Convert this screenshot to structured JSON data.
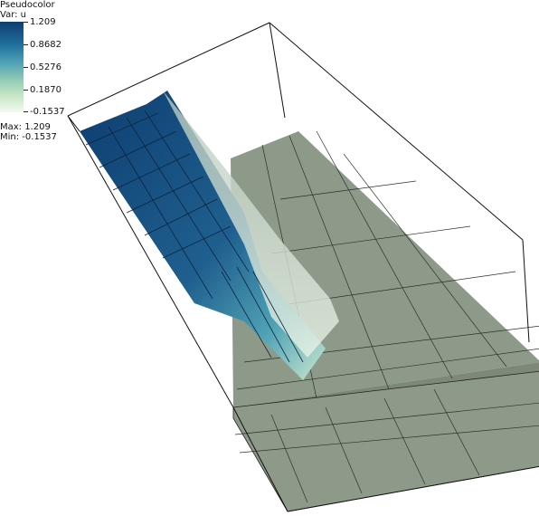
{
  "legend": {
    "title": "Pseudocolor",
    "var": "Var: u",
    "ticks": [
      "1.209",
      "0.8682",
      "0.5276",
      "0.1870",
      "-0.1537"
    ],
    "max": "Max:  1.209",
    "min": "Min: -0.1537"
  },
  "colors": {
    "high": "#0d3e70",
    "mid": "#4fa2b5",
    "low": "#f3faf0",
    "floor": "#8e9a89",
    "box": "#111111"
  }
}
